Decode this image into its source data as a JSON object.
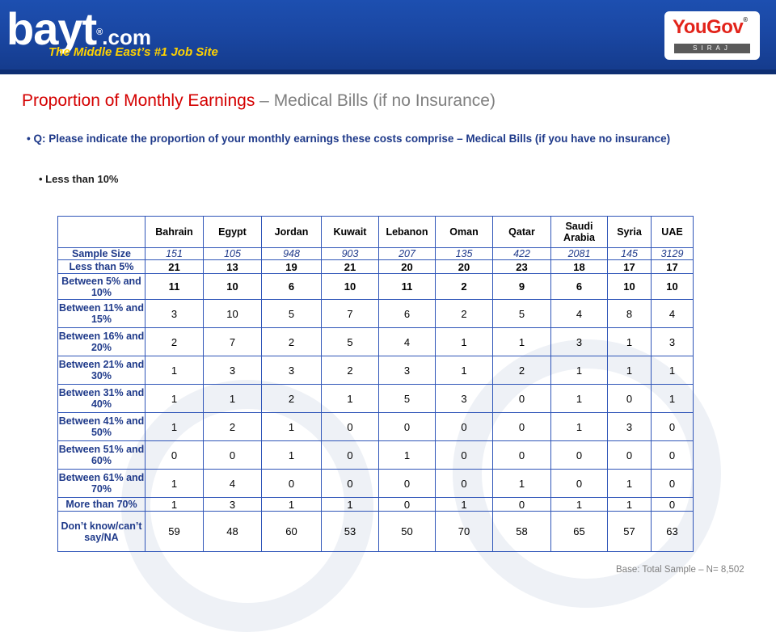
{
  "header": {
    "logo_text": "bayt",
    "logo_reg": "®",
    "logo_suffix": ".com",
    "tagline": "The Middle East’s #1 Job Site",
    "partner_logo": "YouGov",
    "partner_reg": "®",
    "partner_sub": "SIRAJ"
  },
  "title": {
    "main": "Proportion of Monthly Earnings",
    "separator": " – ",
    "sub": "Medical Bills (if no Insurance)"
  },
  "question": "• Q: Please indicate the proportion of your monthly earnings these costs comprise – Medical Bills (if you have no insurance)",
  "sub_bullet": "• Less than 10%",
  "table": {
    "columns": [
      "Bahrain",
      "Egypt",
      "Jordan",
      "Kuwait",
      "Lebanon",
      "Oman",
      "Qatar",
      "Saudi Arabia",
      "Syria",
      "UAE"
    ],
    "sample_size": {
      "label": "Sample Size",
      "values": [
        "151",
        "105",
        "948",
        "903",
        "207",
        "135",
        "422",
        "2081",
        "145",
        "3129"
      ]
    },
    "rows": [
      {
        "label": "Less than 5%",
        "values": [
          "21",
          "13",
          "19",
          "21",
          "20",
          "20",
          "23",
          "18",
          "17",
          "17"
        ],
        "bold": true
      },
      {
        "label": "Between 5% and 10%",
        "values": [
          "11",
          "10",
          "6",
          "10",
          "11",
          "2",
          "9",
          "6",
          "10",
          "10"
        ],
        "bold": true
      },
      {
        "label": "Between 11% and 15%",
        "values": [
          "3",
          "10",
          "5",
          "7",
          "6",
          "2",
          "5",
          "4",
          "8",
          "4"
        ]
      },
      {
        "label": "Between 16% and 20%",
        "values": [
          "2",
          "7",
          "2",
          "5",
          "4",
          "1",
          "1",
          "3",
          "1",
          "3"
        ]
      },
      {
        "label": "Between 21% and 30%",
        "values": [
          "1",
          "3",
          "3",
          "2",
          "3",
          "1",
          "2",
          "1",
          "1",
          "1"
        ]
      },
      {
        "label": "Between 31% and 40%",
        "values": [
          "1",
          "1",
          "2",
          "1",
          "5",
          "3",
          "0",
          "1",
          "0",
          "1"
        ]
      },
      {
        "label": "Between 41% and 50%",
        "values": [
          "1",
          "2",
          "1",
          "0",
          "0",
          "0",
          "0",
          "1",
          "3",
          "0"
        ]
      },
      {
        "label": "Between 51% and 60%",
        "values": [
          "0",
          "0",
          "1",
          "0",
          "1",
          "0",
          "0",
          "0",
          "0",
          "0"
        ]
      },
      {
        "label": "Between 61% and 70%",
        "values": [
          "1",
          "4",
          "0",
          "0",
          "0",
          "0",
          "1",
          "0",
          "1",
          "0"
        ]
      },
      {
        "label": "More than 70%",
        "values": [
          "1",
          "3",
          "1",
          "1",
          "0",
          "1",
          "0",
          "1",
          "1",
          "0"
        ]
      },
      {
        "label": "Don’t know/can’t say/NA",
        "values": [
          "59",
          "48",
          "60",
          "53",
          "50",
          "70",
          "58",
          "65",
          "57",
          "63"
        ]
      }
    ]
  },
  "base_note": "Base: Total Sample – N=  8,502"
}
